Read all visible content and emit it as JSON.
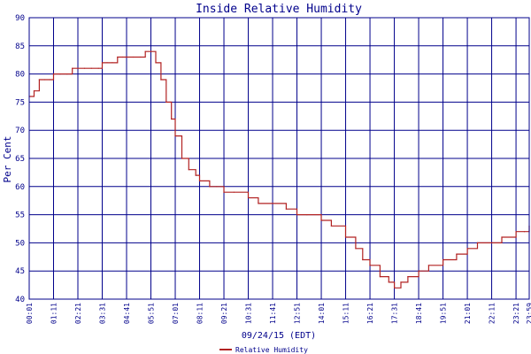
{
  "chart_data": {
    "type": "line",
    "title": "Inside Relative Humidity",
    "ylabel": "Per Cent",
    "xlabel": "09/24/15 (EDT)",
    "ylim": [
      40,
      90
    ],
    "yticks": [
      40,
      45,
      50,
      55,
      60,
      65,
      70,
      75,
      80,
      85,
      90
    ],
    "grid": true,
    "legend_position": "bottom-center",
    "colors": {
      "grid": "#00008b",
      "axis": "#00008b",
      "line": "#b22222",
      "text": "#00008b"
    },
    "xticks": [
      "00:01",
      "01:11",
      "02:21",
      "03:31",
      "04:41",
      "05:51",
      "07:01",
      "08:11",
      "09:21",
      "10:31",
      "11:41",
      "12:51",
      "14:01",
      "15:11",
      "16:21",
      "17:31",
      "18:41",
      "19:51",
      "21:01",
      "22:11",
      "23:21",
      "23:59"
    ],
    "series": [
      {
        "name": "Relative Humidity",
        "x": [
          "00:01",
          "00:15",
          "00:30",
          "00:45",
          "01:00",
          "01:11",
          "01:30",
          "01:50",
          "02:05",
          "02:21",
          "02:40",
          "03:00",
          "03:20",
          "03:31",
          "03:45",
          "04:00",
          "04:15",
          "04:30",
          "04:41",
          "05:00",
          "05:20",
          "05:35",
          "05:51",
          "06:05",
          "06:20",
          "06:35",
          "06:50",
          "07:01",
          "07:20",
          "07:40",
          "08:00",
          "08:11",
          "08:40",
          "09:00",
          "09:21",
          "09:50",
          "10:31",
          "11:00",
          "11:41",
          "12:20",
          "12:51",
          "13:20",
          "14:01",
          "14:30",
          "15:11",
          "15:40",
          "16:00",
          "16:21",
          "16:50",
          "17:15",
          "17:31",
          "17:50",
          "18:10",
          "18:41",
          "19:10",
          "19:51",
          "20:30",
          "21:01",
          "21:30",
          "22:11",
          "22:40",
          "23:21",
          "23:45",
          "23:59"
        ],
        "y": [
          76,
          77,
          79,
          79,
          79,
          80,
          80,
          80,
          81,
          81,
          81,
          81,
          81,
          82,
          82,
          82,
          83,
          83,
          83,
          83,
          83,
          84,
          84,
          82,
          79,
          75,
          72,
          69,
          65,
          63,
          62,
          61,
          60,
          60,
          59,
          59,
          58,
          57,
          57,
          56,
          55,
          55,
          54,
          53,
          51,
          49,
          47,
          46,
          44,
          43,
          42,
          43,
          44,
          45,
          46,
          47,
          48,
          49,
          50,
          50,
          51,
          52,
          52,
          53
        ]
      }
    ]
  }
}
